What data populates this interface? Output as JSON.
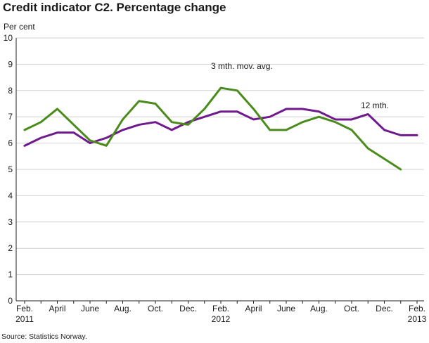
{
  "chart_data": {
    "type": "line",
    "title": "Credit indicator C2. Percentage change",
    "ylabel": "Per cent",
    "xlabel": "",
    "ylim": [
      0,
      10
    ],
    "yticks": [
      "0",
      "1",
      "2",
      "3",
      "4",
      "5",
      "6",
      "7",
      "8",
      "9",
      "10"
    ],
    "x_tick_labels": [
      {
        "label": "Feb.",
        "year": "2011",
        "month_index": 0
      },
      {
        "label": "April",
        "year": "",
        "month_index": 2
      },
      {
        "label": "June",
        "year": "",
        "month_index": 4
      },
      {
        "label": "Aug.",
        "year": "",
        "month_index": 6
      },
      {
        "label": "Oct.",
        "year": "",
        "month_index": 8
      },
      {
        "label": "Dec.",
        "year": "",
        "month_index": 10
      },
      {
        "label": "Feb.",
        "year": "2012",
        "month_index": 12
      },
      {
        "label": "April",
        "year": "",
        "month_index": 14
      },
      {
        "label": "June",
        "year": "",
        "month_index": 16
      },
      {
        "label": "Aug.",
        "year": "",
        "month_index": 18
      },
      {
        "label": "Oct.",
        "year": "",
        "month_index": 20
      },
      {
        "label": "Dec.",
        "year": "",
        "month_index": 22
      },
      {
        "label": "Feb.",
        "year": "2013",
        "month_index": 24
      }
    ],
    "x_count": 25,
    "series": [
      {
        "name": "12 mth.",
        "color": "#6f1a8c",
        "values": [
          5.9,
          6.2,
          6.4,
          6.4,
          6.0,
          6.2,
          6.5,
          6.7,
          6.8,
          6.5,
          6.8,
          7.0,
          7.2,
          7.2,
          6.9,
          7.0,
          7.3,
          7.3,
          7.2,
          6.9,
          6.9,
          7.1,
          6.5,
          6.3,
          6.3
        ]
      },
      {
        "name": "3 mth. mov. avg.",
        "color": "#4a8c1c",
        "values": [
          6.5,
          6.8,
          7.3,
          6.7,
          6.1,
          5.9,
          6.9,
          7.6,
          7.5,
          6.8,
          6.7,
          7.3,
          8.1,
          8.0,
          7.3,
          6.5,
          6.5,
          6.8,
          7.0,
          6.8,
          6.5,
          5.8,
          5.4,
          5.0
        ]
      }
    ],
    "annotations": [
      {
        "text": "3 mth. mov. avg.",
        "series": "3 mth. mov. avg."
      },
      {
        "text": "12 mth.",
        "series": "12 mth."
      }
    ]
  },
  "source": "Source: Statistics Norway."
}
